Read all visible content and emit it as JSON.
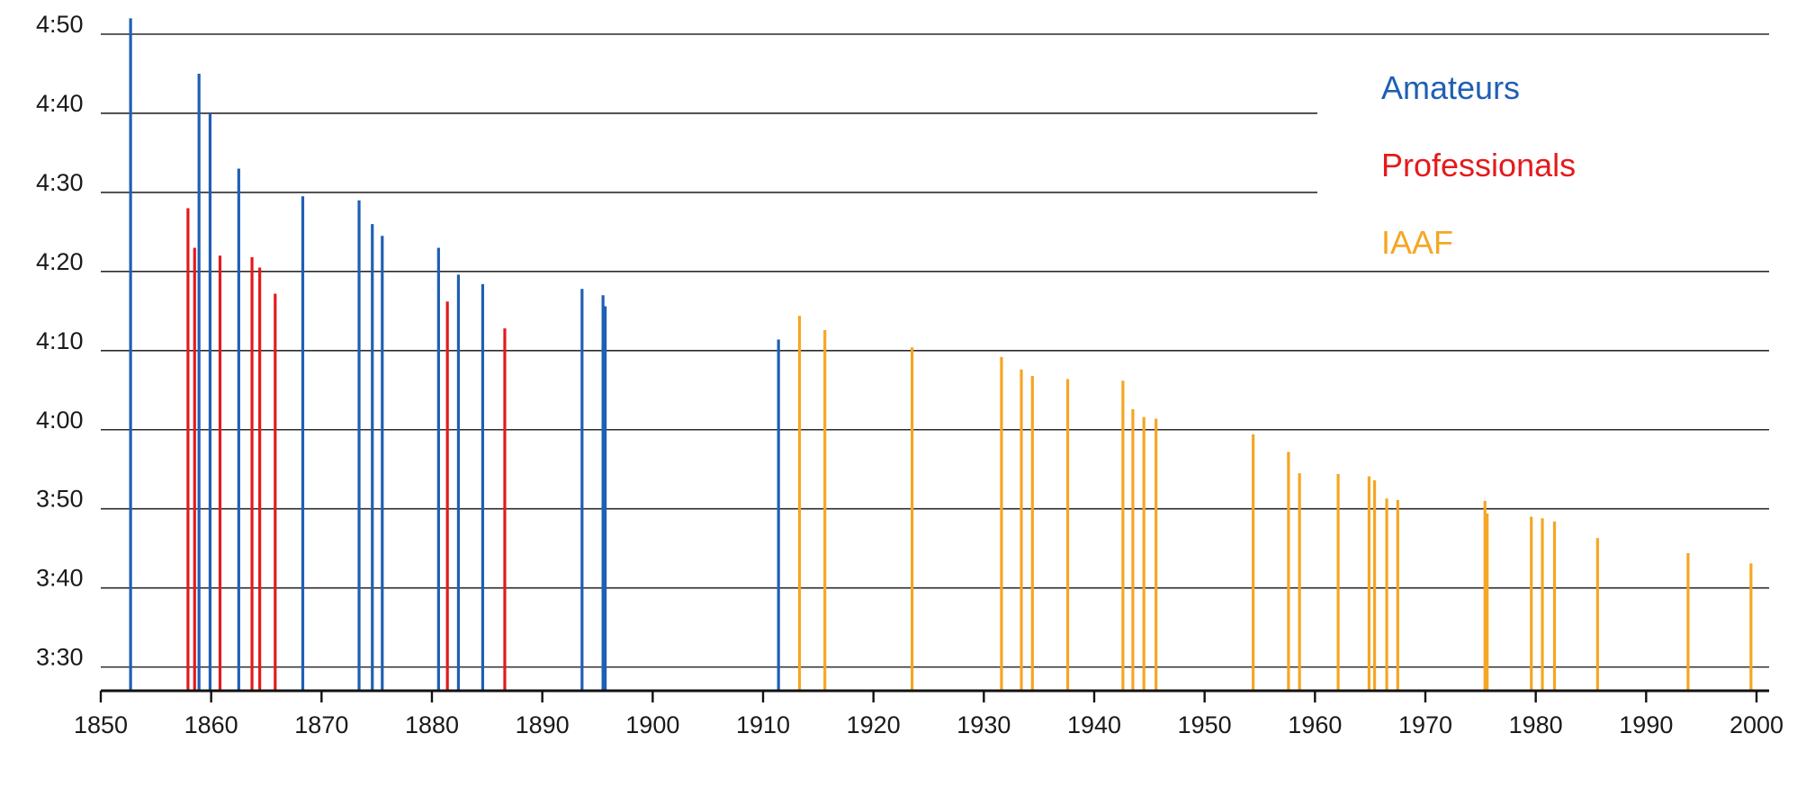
{
  "chart_data": {
    "type": "bar",
    "title": "",
    "xlabel": "",
    "ylabel": "",
    "xlim": [
      1850,
      2000
    ],
    "xticks": [
      "1850",
      "1860",
      "1870",
      "1880",
      "1890",
      "1900",
      "1910",
      "1920",
      "1930",
      "1940",
      "1950",
      "1960",
      "1970",
      "1980",
      "1990",
      "2000"
    ],
    "ylim_seconds": [
      207,
      290
    ],
    "yticks": [
      "3:30",
      "3:40",
      "3:50",
      "4:00",
      "4:10",
      "4:20",
      "4:30",
      "4:40",
      "4:50"
    ],
    "grid": "horizontal",
    "legend_position": "top-right",
    "series": [
      {
        "name": "Amateurs",
        "color": "#1f5fb4",
        "points": [
          {
            "year": 1852.7,
            "time": "4:52"
          },
          {
            "year": 1858.9,
            "time": "4:45"
          },
          {
            "year": 1859.9,
            "time": "4:40"
          },
          {
            "year": 1862.5,
            "time": "4:33"
          },
          {
            "year": 1868.3,
            "time": "4:29.5"
          },
          {
            "year": 1873.4,
            "time": "4:29"
          },
          {
            "year": 1874.6,
            "time": "4:26"
          },
          {
            "year": 1875.5,
            "time": "4:24.5"
          },
          {
            "year": 1880.6,
            "time": "4:23"
          },
          {
            "year": 1882.4,
            "time": "4:19.6"
          },
          {
            "year": 1884.6,
            "time": "4:18.4"
          },
          {
            "year": 1893.6,
            "time": "4:17.8"
          },
          {
            "year": 1895.5,
            "time": "4:17"
          },
          {
            "year": 1895.7,
            "time": "4:15.6"
          },
          {
            "year": 1911.4,
            "time": "4:11.4"
          }
        ]
      },
      {
        "name": "Professionals",
        "color": "#e41a1c",
        "points": [
          {
            "year": 1857.9,
            "time": "4:28"
          },
          {
            "year": 1858.5,
            "time": "4:23"
          },
          {
            "year": 1860.8,
            "time": "4:22"
          },
          {
            "year": 1863.7,
            "time": "4:21.8"
          },
          {
            "year": 1864.4,
            "time": "4:20.5"
          },
          {
            "year": 1865.8,
            "time": "4:17.2"
          },
          {
            "year": 1881.4,
            "time": "4:16.2"
          },
          {
            "year": 1886.6,
            "time": "4:12.8"
          }
        ]
      },
      {
        "name": "IAAF",
        "color": "#f5a623",
        "points": [
          {
            "year": 1913.3,
            "time": "4:14.4"
          },
          {
            "year": 1915.6,
            "time": "4:12.6"
          },
          {
            "year": 1923.5,
            "time": "4:10.4"
          },
          {
            "year": 1931.6,
            "time": "4:09.2"
          },
          {
            "year": 1933.4,
            "time": "4:07.6"
          },
          {
            "year": 1934.4,
            "time": "4:06.8"
          },
          {
            "year": 1937.6,
            "time": "4:06.4"
          },
          {
            "year": 1942.6,
            "time": "4:06.2"
          },
          {
            "year": 1943.5,
            "time": "4:02.6"
          },
          {
            "year": 1944.5,
            "time": "4:01.6"
          },
          {
            "year": 1945.6,
            "time": "4:01.4"
          },
          {
            "year": 1954.4,
            "time": "3:59.4"
          },
          {
            "year": 1957.6,
            "time": "3:57.2"
          },
          {
            "year": 1958.6,
            "time": "3:54.5"
          },
          {
            "year": 1962.1,
            "time": "3:54.4"
          },
          {
            "year": 1964.9,
            "time": "3:54.1"
          },
          {
            "year": 1965.4,
            "time": "3:53.6"
          },
          {
            "year": 1966.5,
            "time": "3:51.3"
          },
          {
            "year": 1967.5,
            "time": "3:51.1"
          },
          {
            "year": 1975.4,
            "time": "3:51.0"
          },
          {
            "year": 1975.6,
            "time": "3:49.4"
          },
          {
            "year": 1979.6,
            "time": "3:49.0"
          },
          {
            "year": 1980.6,
            "time": "3:48.8"
          },
          {
            "year": 1981.7,
            "time": "3:48.4"
          },
          {
            "year": 1985.6,
            "time": "3:46.3"
          },
          {
            "year": 1993.8,
            "time": "3:44.4"
          },
          {
            "year": 1999.5,
            "time": "3:43.1"
          }
        ]
      }
    ]
  }
}
